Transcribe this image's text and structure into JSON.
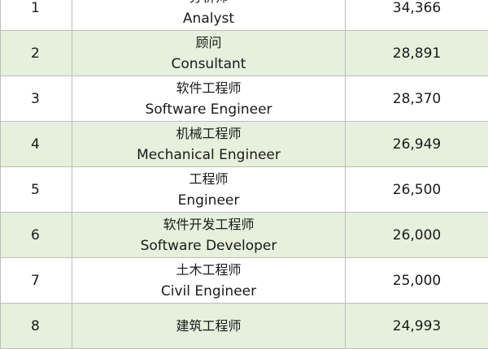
{
  "rows": [
    {
      "rank": "1",
      "title_zh": "分析师",
      "title_en": "Analyst",
      "value": "34,366"
    },
    {
      "rank": "2",
      "title_zh": "顾问",
      "title_en": "Consultant",
      "value": "28,891"
    },
    {
      "rank": "3",
      "title_zh": "软件工程师",
      "title_en": "Software Engineer",
      "value": "28,370"
    },
    {
      "rank": "4",
      "title_zh": "机械工程师",
      "title_en": "Mechanical Engineer",
      "value": "26,949"
    },
    {
      "rank": "5",
      "title_zh": "工程师",
      "title_en": "Engineer",
      "value": "26,500"
    },
    {
      "rank": "6",
      "title_zh": "软件开发工程师",
      "title_en": "Software Developer",
      "value": "26,000"
    },
    {
      "rank": "7",
      "title_zh": "土木工程师",
      "title_en": "Civil Engineer",
      "value": "25,000"
    },
    {
      "rank": "8",
      "title_zh": "建筑工程师",
      "title_en": "",
      "value": "24,993"
    }
  ],
  "colors": {
    "stripe": "#e6f0dc",
    "border": "#bdbdbd"
  }
}
